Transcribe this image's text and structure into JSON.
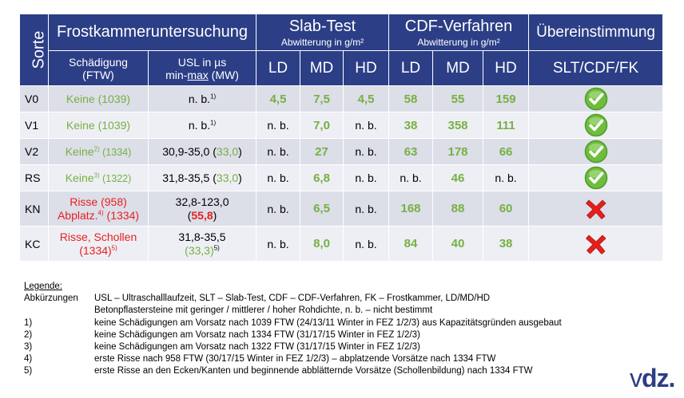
{
  "header": {
    "sorte": "Sorte",
    "frost": "Frostkammeruntersuchung",
    "slab": "Slab-Test",
    "slab_sub": "Abwitterung  in g/m²",
    "cdf": "CDF-Verfahren",
    "cdf_sub": "Abwitterung  in g/m²",
    "ueber": "Übereinstimmung",
    "schaed_1": "Schädigung",
    "schaed_2": "(FTW)",
    "usl_1": "USL  in µs",
    "usl_2a": "min-",
    "usl_2b": "max",
    "usl_2c": " (MW)",
    "ld": "LD",
    "md": "MD",
    "hd": "HD",
    "cmp": "SLT/CDF/FK"
  },
  "rows": [
    {
      "sorte": "V0",
      "schaed_a": "Keine (1039)",
      "schaed_sup": "",
      "schaed_b": "",
      "usl_a": "n. b.",
      "usl_sup": "1)",
      "usl_b": "",
      "slt_ld": "4,5",
      "slt_md": "7,5",
      "slt_hd": "4,5",
      "cdf_ld": "58",
      "cdf_md": "55",
      "cdf_hd": "159",
      "match": "check"
    },
    {
      "sorte": "V1",
      "schaed_a": "Keine (1039)",
      "usl_a": "n. b.",
      "usl_sup": "1)",
      "slt_ld": "n. b.",
      "slt_md": "7,0",
      "slt_hd": "n. b.",
      "cdf_ld": "38",
      "cdf_md": "358",
      "cdf_hd": "111",
      "match": "check"
    },
    {
      "sorte": "V2",
      "schaed_a": "Keine",
      "schaed_sup": "2)",
      "schaed_b": " (1334)",
      "usl_a": "30,9-35,0 (",
      "usl_mw": "33,0",
      "usl_c": ")",
      "slt_ld": "n. b.",
      "slt_md": "27",
      "slt_hd": "n. b.",
      "cdf_ld": "63",
      "cdf_md": "178",
      "cdf_hd": "66",
      "match": "check"
    },
    {
      "sorte": "RS",
      "schaed_a": "Keine",
      "schaed_sup": "3)",
      "schaed_b": " (1322)",
      "usl_a": "31,8-35,5 (",
      "usl_mw": "33,0",
      "usl_c": ")",
      "slt_ld": "n. b.",
      "slt_md": "6,8",
      "slt_hd": "n. b.",
      "cdf_ld": "n. b.",
      "cdf_md": "46",
      "cdf_hd": "n. b.",
      "match": "check"
    },
    {
      "sorte": "KN",
      "schaed_l1": "Risse (958)",
      "schaed_l2a": "Abplatz.",
      "schaed_l2sup": "4)",
      "schaed_l2b": "  (1334)",
      "usl_l1": "32,8-123,0",
      "usl_l2a": "(",
      "usl_l2mw": "55,8",
      "usl_l2c": ")",
      "slt_ld": "n. b.",
      "slt_md": "6,5",
      "slt_hd": "n. b.",
      "cdf_ld": "168",
      "cdf_md": "88",
      "cdf_hd": "60",
      "match": "cross"
    },
    {
      "sorte": "KC",
      "schaed_l1": "Risse, Schollen",
      "schaed_l2a": "(1334)",
      "schaed_l2sup": "5)",
      "usl_l1": "31,8-35,5",
      "usl_l2mw": "(33,3)",
      "usl_l2sup": "5)",
      "slt_ld": "n. b.",
      "slt_md": "8,0",
      "slt_hd": "n. b.",
      "cdf_ld": "84",
      "cdf_md": "40",
      "cdf_hd": "38",
      "match": "cross"
    }
  ],
  "legend": {
    "title": "Legende:",
    "abbr_key": "Abkürzungen",
    "abbr_1": "USL – Ultraschalllaufzeit,  SLT – Slab-Test, CDF – CDF-Verfahren,  FK – Frostkammer,  LD/MD/HD",
    "abbr_2": "Betonpflastersteine mit geringer / mittlerer / hoher Rohdichte,  n. b. – nicht bestimmt",
    "notes": [
      {
        "key": "1)",
        "text": "keine Schädigungen am Vorsatz nach 1039 FTW (24/13/11 Winter in FEZ 1/2/3) aus Kapazitätsgründen ausgebaut"
      },
      {
        "key": "2)",
        "text": "keine Schädigungen am Vorsatz nach 1334 FTW (31/17/15 Winter in FEZ 1/2/3)"
      },
      {
        "key": "3)",
        "text": "keine Schädigungen am Vorsatz nach 1322 FTW (31/17/15 Winter in FEZ 1/2/3)"
      },
      {
        "key": "4)",
        "text": "erste Risse nach 958 FTW (30/17/15 Winter in FEZ 1/2/3) – abplatzende Vorsätze  nach 1334 FTW"
      },
      {
        "key": "5)",
        "text": "erste Risse an den Ecken/Kanten und beginnende abblätternde Vorsätze  (Schollenbildung) nach 1334 FTW"
      }
    ]
  },
  "logo": {
    "a": "v",
    "b": "dz",
    "c": "."
  },
  "colors": {
    "header": "#2b3e86",
    "row_a": "#dcdee8",
    "row_b": "#eeeff4",
    "green": "#76b043",
    "red": "#e8201f"
  },
  "icons": {
    "check": "check-circle-icon",
    "cross": "red-cross-icon"
  }
}
